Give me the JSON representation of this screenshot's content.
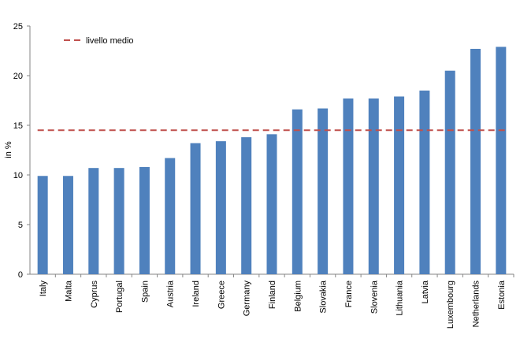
{
  "chart_data": {
    "type": "bar",
    "categories": [
      "Italy",
      "Malta",
      "Cyprus",
      "Portugal",
      "Spain",
      "Austria",
      "Ireland",
      "Greece",
      "Germany",
      "Finland",
      "Belgium",
      "Slovakia",
      "France",
      "Slovenia",
      "Lithuania",
      "Latvia",
      "Luxembourg",
      "Netherlands",
      "Estonia"
    ],
    "values": [
      9.9,
      9.9,
      10.7,
      10.7,
      10.8,
      11.7,
      13.2,
      13.4,
      13.8,
      14.1,
      16.6,
      16.7,
      17.7,
      17.7,
      17.9,
      18.5,
      20.5,
      22.7,
      22.9
    ],
    "average": 14.5,
    "legend_label": "livello medio",
    "legend_position": "top-left",
    "xlabel": "",
    "ylabel": "in %",
    "ylim": [
      0,
      25
    ],
    "yticks": [
      "0",
      "5",
      "10",
      "15",
      "20",
      "25"
    ],
    "grid": false,
    "bar_color": "#4F81BD",
    "average_line_color": "#C0504D"
  }
}
